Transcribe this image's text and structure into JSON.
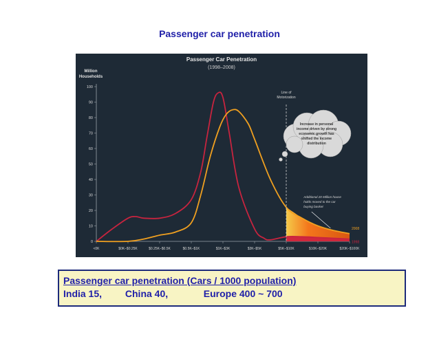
{
  "slide": {
    "title": "Passenger car penetration"
  },
  "info_box": {
    "heading": "Passenger car penetration (Cars / 1000 population)",
    "items": [
      "India 15,",
      "China 40,",
      "Europe 400 ~ 700"
    ]
  },
  "colors": {
    "panel_bg": "#1e2a36",
    "series_1998": "#c8243f",
    "series_2008": "#f0a020",
    "fill_2008": "#ff7a1a",
    "fill_1998": "#d0283e",
    "title_blue": "#1f1fa8",
    "box_bg": "#f8f4c4",
    "box_border": "#1c2a7a"
  },
  "chart_data": {
    "type": "line",
    "title": "Passenger Car Penetration",
    "subtitle": "(1998–2008)",
    "ylabel": "Million Households",
    "ylim": [
      0,
      100
    ],
    "yticks": [
      0,
      10,
      20,
      30,
      40,
      50,
      60,
      70,
      80,
      90,
      100
    ],
    "grid": false,
    "categories": [
      "<0K",
      "$0K–$0.25K",
      "$0.25K–$0.5K",
      "$0.5K–$1K",
      "$1K–$3K",
      "$3K–$5K",
      "$5K–$10K",
      "$10K–$20K",
      "$20K–$100K"
    ],
    "x_range": [
      0,
      8
    ],
    "series": [
      {
        "name": "1998",
        "x": [
          0,
          0.5,
          1,
          1.25,
          1.5,
          2,
          2.5,
          3,
          3.3,
          3.5,
          3.7,
          3.85,
          4,
          4.2,
          4.5,
          5,
          5.3,
          5.5,
          6,
          6.5,
          7,
          7.5,
          8
        ],
        "y": [
          0,
          8,
          15,
          16,
          15,
          15,
          18,
          27,
          45,
          68,
          90,
          96,
          93,
          70,
          35,
          8,
          2,
          1,
          3,
          3,
          2.5,
          2,
          1.5
        ]
      },
      {
        "name": "2008",
        "x": [
          0,
          1,
          1.5,
          2,
          2.5,
          3,
          3.3,
          3.6,
          3.9,
          4.1,
          4.3,
          4.5,
          4.8,
          5,
          5.5,
          6,
          6.5,
          7,
          7.5,
          8
        ],
        "y": [
          0,
          0,
          1.5,
          4,
          6,
          12,
          30,
          55,
          74,
          82,
          85,
          84,
          76,
          66,
          40,
          22,
          15,
          10,
          7,
          5
        ]
      }
    ],
    "line_of_motorization_x": 6,
    "annotations": [
      {
        "id": "motorization",
        "text": [
          "Line of",
          "Motorization"
        ]
      },
      {
        "id": "cloud",
        "text": [
          "Increase in personal",
          "income driven by strong",
          "economic growth has",
          "shifted the income",
          "distribution"
        ]
      },
      {
        "id": "additional",
        "text": [
          "Additional 20 Million house",
          "holds moved to the car",
          "buying basket"
        ]
      }
    ],
    "end_labels": [
      {
        "series": "2008",
        "text": "2008"
      },
      {
        "series": "1998",
        "text": "1998"
      }
    ]
  }
}
